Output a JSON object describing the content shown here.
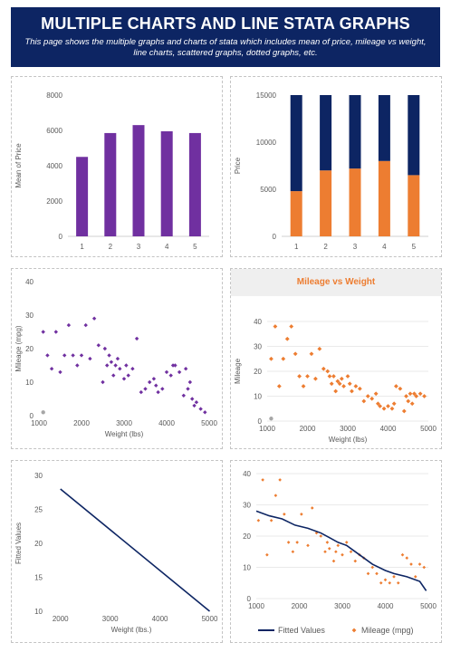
{
  "header": {
    "title": "MULTIPLE CHARTS AND LINE STATA GRAPHS",
    "subtitle": "This page shows the multiple graphs and charts of stata which includes mean of price, mileage vs weight, line charts, scattered graphs, dotted graphs, etc."
  },
  "colors": {
    "header_bg": "#0d2563",
    "purple": "#7030a0",
    "navy": "#0d2563",
    "orange": "#ed7d31",
    "grey_dot": "#a6a6a6"
  },
  "chart_data": [
    {
      "id": "mean-price",
      "type": "bar",
      "title": "",
      "xlabel": "",
      "ylabel": "Mean of Price",
      "categories": [
        "1",
        "2",
        "3",
        "4",
        "5"
      ],
      "values": [
        4500,
        5850,
        6300,
        5950,
        5850
      ],
      "ylim": [
        0,
        8000
      ],
      "yticks": [
        0,
        2000,
        4000,
        6000,
        8000
      ],
      "color": "#7030a0",
      "grid": false
    },
    {
      "id": "price-stacked",
      "type": "bar",
      "stacked": true,
      "title": "",
      "xlabel": "",
      "ylabel": "Price",
      "categories": [
        "1",
        "2",
        "3",
        "4",
        "5"
      ],
      "series": [
        {
          "values": [
            4800,
            7000,
            7200,
            8000,
            6500
          ],
          "color": "#ed7d31"
        },
        {
          "values": [
            10200,
            8000,
            7800,
            7000,
            8500
          ],
          "color": "#0d2563"
        }
      ],
      "ylim": [
        0,
        15000
      ],
      "yticks": [
        0,
        5000,
        10000,
        15000
      ],
      "grid": false
    },
    {
      "id": "mileage-weight-purple",
      "type": "scatter",
      "title": "",
      "xlabel": "Weight (lbs)",
      "ylabel": "Mileage  (mpg)",
      "xlim": [
        1000,
        5000
      ],
      "ylim": [
        0,
        40
      ],
      "xticks": [
        1000,
        2000,
        3000,
        4000,
        5000
      ],
      "yticks": [
        0,
        10,
        20,
        30,
        40
      ],
      "color": "#7030a0",
      "outlier": [
        1100,
        1
      ],
      "x": [
        1100,
        1200,
        1300,
        1400,
        1500,
        1600,
        1700,
        1800,
        1900,
        2000,
        2100,
        2200,
        2300,
        2400,
        2500,
        2550,
        2600,
        2650,
        2700,
        2750,
        2800,
        2850,
        2900,
        3000,
        3050,
        3100,
        3200,
        3300,
        3400,
        3500,
        3600,
        3700,
        3750,
        3800,
        3900,
        4000,
        4100,
        4150,
        4200,
        4300,
        4400,
        4450,
        4500,
        4550,
        4600,
        4650,
        4700,
        4800,
        4900
      ],
      "y": [
        25,
        18,
        14,
        25,
        13,
        18,
        27,
        18,
        15,
        18,
        27,
        17,
        29,
        21,
        10,
        20,
        15,
        18,
        16,
        12,
        15,
        17,
        14,
        11,
        15,
        12,
        14,
        23,
        7,
        8,
        10,
        11,
        9,
        7,
        8,
        13,
        12,
        15,
        15,
        13,
        6,
        14,
        8,
        10,
        5,
        3,
        4,
        2,
        1
      ],
      "grid": false
    },
    {
      "id": "mileage-weight-orange",
      "type": "scatter",
      "title": "Mileage vs Weight",
      "xlabel": "Weight (lbs)",
      "ylabel": "Mileage",
      "xlim": [
        1000,
        5000
      ],
      "ylim": [
        0,
        40
      ],
      "xticks": [
        1000,
        2000,
        3000,
        4000,
        5000
      ],
      "yticks": [
        0,
        10,
        20,
        30,
        40
      ],
      "color": "#ed7d31",
      "outlier": [
        1100,
        1
      ],
      "x": [
        1100,
        1200,
        1300,
        1400,
        1500,
        1600,
        1700,
        1800,
        1900,
        2000,
        2100,
        2200,
        2300,
        2400,
        2500,
        2550,
        2600,
        2650,
        2700,
        2750,
        2800,
        2850,
        2900,
        3000,
        3050,
        3100,
        3200,
        3300,
        3400,
        3500,
        3600,
        3700,
        3750,
        3800,
        3900,
        4000,
        4100,
        4150,
        4200,
        4300,
        4400,
        4450,
        4500,
        4550,
        4600,
        4650,
        4700,
        4800,
        4900
      ],
      "y": [
        25,
        38,
        14,
        25,
        33,
        38,
        27,
        18,
        14,
        18,
        27,
        17,
        29,
        21,
        20,
        18,
        15,
        18,
        12,
        16,
        15,
        17,
        14,
        18,
        15,
        12,
        14,
        13,
        8,
        10,
        9,
        11,
        7,
        6,
        5,
        6,
        5,
        7,
        14,
        13,
        4,
        10,
        8,
        11,
        7,
        11,
        10,
        11,
        10
      ],
      "grid": true
    },
    {
      "id": "fitted-line",
      "type": "line",
      "title": "",
      "xlabel": "Weight (lbs.)",
      "ylabel": "Fitted Values",
      "xlim": [
        1750,
        5100
      ],
      "ylim": [
        10,
        30
      ],
      "xticks": [
        2000,
        3000,
        4000,
        5000
      ],
      "yticks": [
        10,
        15,
        20,
        25,
        30
      ],
      "color": "#0d2563",
      "x": [
        2000,
        5000
      ],
      "y": [
        28,
        10
      ],
      "grid": false
    },
    {
      "id": "fitted-vs-mileage",
      "type": "scatter",
      "title": "",
      "xlabel": "",
      "ylabel": "",
      "xlim": [
        1000,
        5000
      ],
      "ylim": [
        0,
        40
      ],
      "xticks": [
        1000,
        2000,
        3000,
        4000,
        5000
      ],
      "yticks": [
        0,
        10,
        20,
        30,
        40
      ],
      "grid": true,
      "legend": "bottom",
      "series": [
        {
          "name": "Fitted Values",
          "type": "line",
          "color": "#0d2563",
          "x": [
            1000,
            1300,
            1600,
            1900,
            2200,
            2500,
            2700,
            2900,
            3100,
            3400,
            3700,
            4000,
            4200,
            4500,
            4800,
            4950
          ],
          "y": [
            28,
            26.5,
            25.5,
            23.5,
            22.5,
            21,
            19.5,
            18,
            17,
            14,
            11,
            9,
            8,
            7,
            5.5,
            2.5
          ]
        },
        {
          "name": "Mileage (mpg)",
          "type": "scatter",
          "color": "#ed7d31",
          "x": [
            1050,
            1150,
            1250,
            1350,
            1450,
            1550,
            1650,
            1750,
            1850,
            1950,
            2050,
            2200,
            2300,
            2400,
            2500,
            2600,
            2650,
            2700,
            2800,
            2850,
            2900,
            3000,
            3100,
            3200,
            3300,
            3400,
            3500,
            3600,
            3700,
            3800,
            3900,
            4000,
            4100,
            4200,
            4300,
            4400,
            4500,
            4600,
            4700,
            4800,
            4900
          ],
          "y": [
            25,
            38,
            14,
            25,
            33,
            38,
            27,
            18,
            15,
            18,
            27,
            17,
            29,
            21,
            20,
            15,
            18,
            16,
            12,
            15,
            17,
            14,
            18,
            15,
            12,
            14,
            13,
            8,
            10,
            8,
            5,
            6,
            5,
            7,
            5,
            14,
            13,
            11,
            7,
            11,
            10
          ]
        }
      ]
    }
  ]
}
